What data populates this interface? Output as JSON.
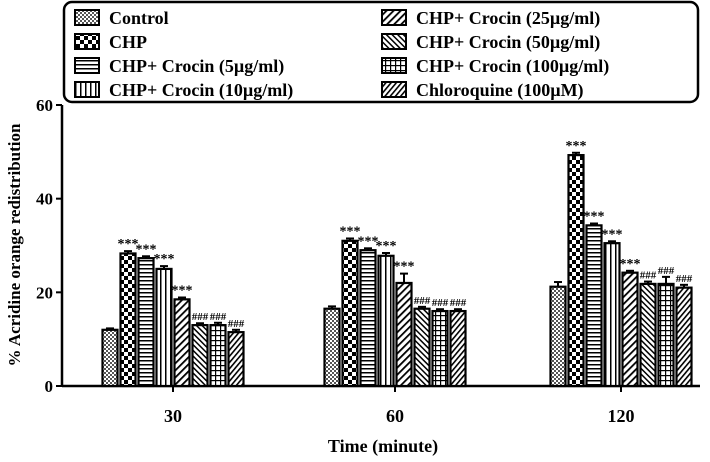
{
  "chart_data": {
    "type": "bar",
    "title": "",
    "xlabel": "Time (minute)",
    "ylabel": "% Acridine orange redistribution",
    "ylim": [
      0,
      60
    ],
    "yticks": [
      0,
      20,
      40,
      60
    ],
    "categories": [
      "30",
      "60",
      "120"
    ],
    "legend_position": "top",
    "series": [
      {
        "name": "Control",
        "pattern": "dots",
        "values": [
          12,
          16.5,
          21.2
        ],
        "annotations": [
          "",
          "",
          ""
        ]
      },
      {
        "name": "CHP",
        "pattern": "checker",
        "values": [
          28.3,
          31,
          49.3
        ],
        "annotations": [
          "***",
          "***",
          "***"
        ]
      },
      {
        "name": "CHP+ Crocin (5µg/ml)",
        "pattern": "hlines",
        "values": [
          27.3,
          29,
          34.3
        ],
        "annotations": [
          "***",
          "***",
          "***"
        ]
      },
      {
        "name": "CHP+ Crocin (10µg/ml)",
        "pattern": "vlines",
        "values": [
          25,
          27.8,
          30.5
        ],
        "annotations": [
          "***",
          "***",
          "***"
        ]
      },
      {
        "name": "CHP+ Crocin (25µg/ml)",
        "pattern": "diag",
        "values": [
          18.5,
          22,
          24.2
        ],
        "annotations": [
          "***",
          "***",
          "***"
        ]
      },
      {
        "name": "CHP+ Crocin (50µg/ml)",
        "pattern": "backdiag",
        "values": [
          13,
          16.5,
          21.8
        ],
        "annotations": [
          "###",
          "###",
          "###"
        ]
      },
      {
        "name": "CHP+ Crocin (100µg/ml)",
        "pattern": "grid",
        "values": [
          13,
          16,
          21.8
        ],
        "annotations": [
          "###",
          "###",
          "###"
        ]
      },
      {
        "name": "Chloroquine (100µM)",
        "pattern": "diagdense",
        "values": [
          11.5,
          16,
          21
        ],
        "annotations": [
          "###",
          "###",
          "###"
        ]
      }
    ],
    "errors": [
      [
        0.3,
        0.5,
        0.4,
        0.6,
        0.4,
        0.4,
        0.5,
        0.5
      ],
      [
        0.5,
        0.5,
        0.4,
        0.6,
        2,
        0.4,
        0.4,
        0.4
      ],
      [
        1,
        0.5,
        0.4,
        0.4,
        0.4,
        0.5,
        1.5,
        0.6
      ]
    ]
  }
}
